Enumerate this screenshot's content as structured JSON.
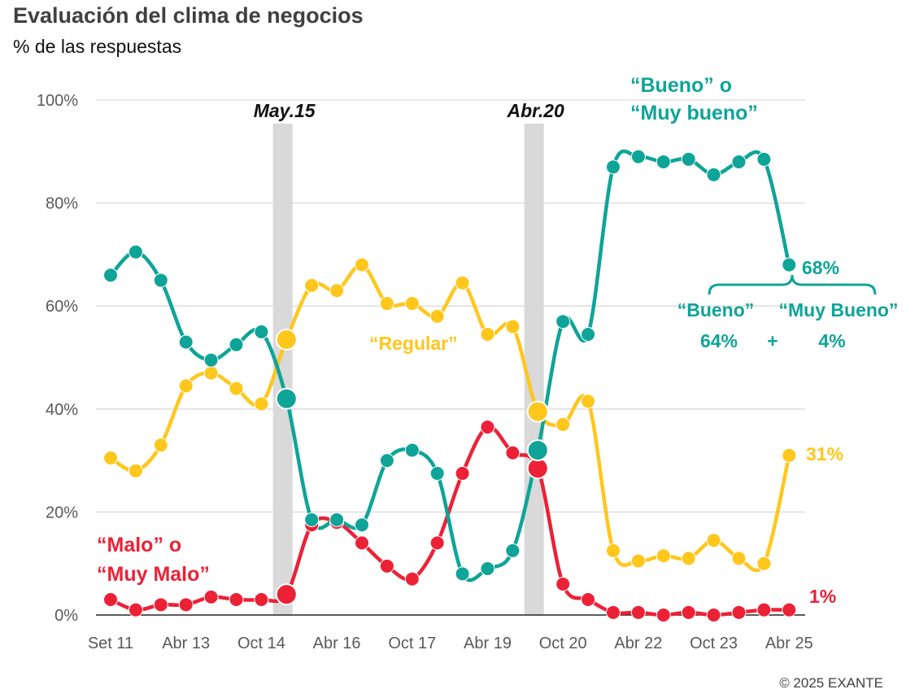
{
  "title": "Evaluación del clima de negocios",
  "subtitle": "% de las respuestas",
  "source": "© 2025 EXANTE",
  "colors": {
    "bueno": "#0FA498",
    "regular": "#FFC61C",
    "malo": "#EC2136",
    "shade": "#D9D9D9",
    "grid": "#D9D9D9"
  },
  "chart_data": {
    "type": "line",
    "x_index": [
      0,
      1,
      2,
      3,
      4,
      5,
      6,
      7,
      8,
      9,
      10,
      11,
      12,
      13,
      14,
      15,
      16,
      17,
      18,
      19,
      20,
      21,
      22,
      23,
      24,
      25,
      26,
      27,
      28
    ],
    "x_tick_labels": [
      {
        "i": 0,
        "label": "Set 11"
      },
      {
        "i": 3,
        "label": "Abr 13"
      },
      {
        "i": 6,
        "label": "Oct 14"
      },
      {
        "i": 9,
        "label": "Abr 16"
      },
      {
        "i": 12,
        "label": "Oct 17"
      },
      {
        "i": 15,
        "label": "Abr 19"
      },
      {
        "i": 18,
        "label": "Oct 20"
      },
      {
        "i": 21,
        "label": "Abr 22"
      },
      {
        "i": 24,
        "label": "Oct 23"
      },
      {
        "i": 27,
        "label": "Abr 25"
      }
    ],
    "y_ticks": [
      "0%",
      "20%",
      "40%",
      "60%",
      "80%",
      "100%"
    ],
    "ylim": [
      0,
      100
    ],
    "grid": true,
    "series": [
      {
        "key": "bueno",
        "name": "“Bueno” o “Muy bueno”",
        "values": [
          66,
          70.5,
          65,
          53,
          49.5,
          52.5,
          55,
          42,
          18.5,
          18.5,
          17.5,
          30,
          32,
          27.5,
          8,
          9,
          12.5,
          32,
          57,
          54.5,
          87,
          89,
          88,
          88.5,
          85.5,
          88,
          88.5,
          68
        ],
        "big": [
          7,
          17
        ]
      },
      {
        "key": "regular",
        "name": "“Regular”",
        "values": [
          30.5,
          28,
          33,
          44.5,
          47,
          44,
          41,
          53.5,
          64,
          63,
          68,
          60.5,
          60.5,
          58,
          64.5,
          54.5,
          56,
          39.5,
          37,
          41.5,
          12.5,
          10.5,
          11.5,
          11,
          14.5,
          11,
          10,
          31
        ],
        "big": [
          7,
          17
        ]
      },
      {
        "key": "malo",
        "name": "“Malo” o “Muy Malo”",
        "values": [
          3,
          1,
          2,
          2,
          3.5,
          3,
          3,
          4,
          17.5,
          18,
          14,
          9.5,
          7,
          14,
          27.5,
          36.5,
          31.5,
          28.5,
          6,
          3,
          0.5,
          0.5,
          0,
          0.5,
          0,
          0.5,
          1,
          1
        ],
        "big": [
          7,
          17
        ]
      }
    ],
    "shaded_periods": [
      {
        "center_index": 6.85,
        "label": "May.15"
      },
      {
        "center_index": 16.85,
        "label": "Abr.20"
      }
    ],
    "annotations": {
      "bueno_line1": "“Bueno” o",
      "bueno_line2": "“Muy bueno”",
      "bueno_end": "68%",
      "bueno_split_a": "“Bueno”",
      "bueno_split_b": "“Muy Bueno”",
      "bueno_pct_a": "64%",
      "bueno_plus": "+",
      "bueno_pct_b": "4%",
      "regular_label": "“Regular”",
      "regular_end": "31%",
      "malo_line1": "“Malo” o",
      "malo_line2": "“Muy Malo”",
      "malo_end": "1%"
    }
  }
}
